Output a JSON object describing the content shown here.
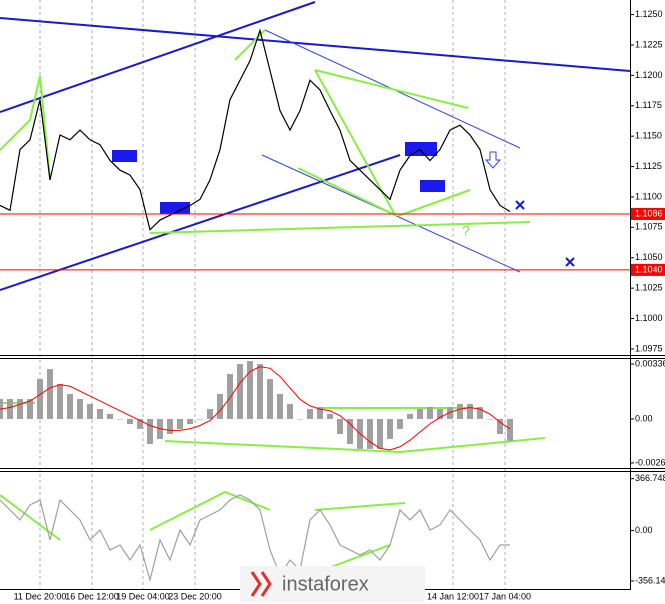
{
  "chart_data": [
    {
      "type": "line",
      "color": "#000000",
      "values": [
        1.1093,
        1.1089,
        1.1139,
        1.1147,
        1.118,
        1.1114,
        1.1151,
        1.1147,
        1.1155,
        1.1147,
        1.1143,
        1.113,
        1.1122,
        1.1118,
        1.1106,
        1.1073,
        1.1081,
        1.1085,
        1.1089,
        1.1093,
        1.1098,
        1.1114,
        1.1139,
        1.118,
        1.1196,
        1.1212,
        1.1237,
        1.1204,
        1.1171,
        1.1155,
        1.1171,
        1.1196,
        1.1188,
        1.1171,
        1.1155,
        1.113,
        1.1122,
        1.1114,
        1.1106,
        1.1098,
        1.1122,
        1.1134,
        1.1139,
        1.113,
        1.1139,
        1.1155,
        1.1159,
        1.1151,
        1.1139,
        1.1106,
        1.1093,
        1.1088
      ],
      "xlim": [
        0,
        63
      ],
      "xticks": [
        {
          "value": 4,
          "label": "11 Dec 20:00"
        },
        {
          "value": 9.2,
          "label": "16 Dec 12:00"
        },
        {
          "value": 14.3,
          "label": "19 Dec 04:00"
        },
        {
          "value": 19.5,
          "label": "23 Dec 20:00"
        },
        {
          "value": 45.3,
          "label": "14 Jan 12:00"
        },
        {
          "value": 50.5,
          "label": "17 Jan 04:00"
        }
      ],
      "ylim": [
        1.097,
        1.1262
      ],
      "yticks": [
        {
          "value": 1.125,
          "label": "1.1250"
        },
        {
          "value": 1.1225,
          "label": "1.1225"
        },
        {
          "value": 1.12,
          "label": "1.1200"
        },
        {
          "value": 1.1175,
          "label": "1.1175"
        },
        {
          "value": 1.115,
          "label": "1.1150"
        },
        {
          "value": 1.1125,
          "label": "1.1125"
        },
        {
          "value": 1.11,
          "label": "1.1100"
        },
        {
          "value": 1.1075,
          "label": "1.1075"
        },
        {
          "value": 1.105,
          "label": "1.1050"
        },
        {
          "value": 1.1025,
          "label": "1.1025"
        },
        {
          "value": 1.1,
          "label": "1.1000"
        },
        {
          "value": 1.0975,
          "label": "1.0975"
        }
      ],
      "hlines": [
        {
          "value": 1.1086,
          "label": "1.1086"
        },
        {
          "value": 1.104,
          "label": "1.1040"
        }
      ],
      "hline_color": "#ff0000",
      "annotation": "?",
      "watermark": "instaforex"
    },
    {
      "type": "bar",
      "color": "#a0a0a0",
      "values": [
        0.00122,
        0.00122,
        0.00122,
        0.00122,
        0.00244,
        0.00305,
        0.00214,
        0.00153,
        0.00122,
        0.00092,
        0.00061,
        0.00031,
        0,
        -0.00031,
        -0.00061,
        -0.00153,
        -0.00122,
        -0.00092,
        -0.00061,
        -0.00031,
        0,
        0.00061,
        0.00153,
        0.00275,
        0.00336,
        0.00354,
        0.00336,
        0.00244,
        0.00153,
        0.00092,
        0,
        0.00061,
        0.00073,
        0.00031,
        -0.00092,
        -0.00153,
        -0.00183,
        -0.00183,
        -0.00183,
        -0.00122,
        -0.00061,
        0.00031,
        0.00061,
        0.00073,
        0.00061,
        0.00073,
        0.00092,
        0.00092,
        0.00073,
        0,
        -0.00092,
        -0.00134
      ],
      "signal_values": [
        0.0006,
        0.0007,
        0.0009,
        0.0011,
        0.0015,
        0.0019,
        0.0021,
        0.002,
        0.0017,
        0.0014,
        0.0011,
        0.0008,
        0.0005,
        0.0002,
        -0.0001,
        -0.0004,
        -0.0006,
        -0.0007,
        -0.0007,
        -0.0006,
        -0.0004,
        -0.0001,
        0.0005,
        0.0013,
        0.0022,
        0.0029,
        0.0032,
        0.0031,
        0.0026,
        0.0019,
        0.0012,
        0.0008,
        0.0006,
        0.0005,
        0.0002,
        -0.0003,
        -0.0009,
        -0.0014,
        -0.0018,
        -0.0019,
        -0.0017,
        -0.0013,
        -0.0008,
        -0.0003,
        0.0001,
        0.0004,
        0.0006,
        0.0007,
        0.0006,
        0.0003,
        -0.0002,
        -0.0006
      ],
      "signal_color": "#ff0000",
      "ylim": [
        -0.003,
        0.00373
      ],
      "yticks": [
        0.00336,
        {
          "value": 0,
          "label": "0.00"
        },
        -0.00269
      ]
    },
    {
      "type": "line",
      "color": "#a0a0a0",
      "values": [
        216,
        146,
        75,
        181,
        216,
        -66,
        216,
        146,
        75,
        -66,
        4,
        -137,
        -102,
        -208,
        -102,
        -349,
        -66,
        -208,
        4,
        -102,
        75,
        110,
        146,
        216,
        252,
        216,
        146,
        -137,
        -314,
        -208,
        -278,
        75,
        146,
        40,
        -102,
        -137,
        -173,
        -137,
        -208,
        -102,
        146,
        75,
        146,
        4,
        40,
        146,
        75,
        4,
        -66,
        -208,
        -102,
        -102
      ],
      "ylim": [
        -420,
        400
      ],
      "yticks": [
        366.748,
        {
          "value": 0,
          "label": "0.00"
        },
        -356.145
      ]
    }
  ]
}
